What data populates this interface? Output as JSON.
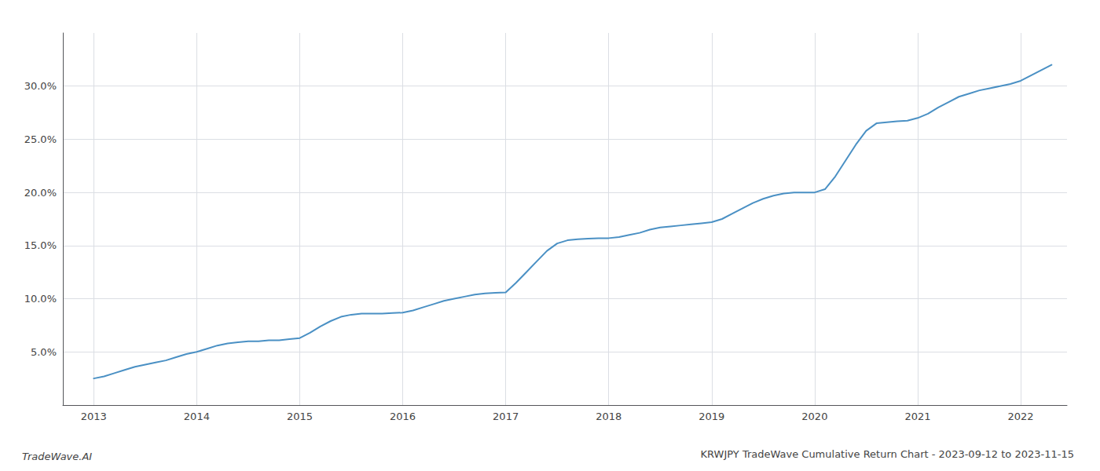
{
  "chart_data": {
    "type": "line",
    "title": "KRWJPY TradeWave Cumulative Return Chart - 2023-09-12 to 2023-11-15",
    "annotations": [
      "TradeWave.AI"
    ],
    "color": "#4a90c4",
    "x": [
      2013.0,
      2013.1,
      2013.2,
      2013.3,
      2013.4,
      2013.5,
      2013.6,
      2013.7,
      2013.8,
      2013.9,
      2014.0,
      2014.1,
      2014.2,
      2014.3,
      2014.4,
      2014.5,
      2014.6,
      2014.7,
      2014.8,
      2014.9,
      2015.0,
      2015.1,
      2015.2,
      2015.3,
      2015.4,
      2015.5,
      2015.6,
      2015.7,
      2015.8,
      2015.9,
      2016.0,
      2016.1,
      2016.2,
      2016.3,
      2016.4,
      2016.5,
      2016.6,
      2016.7,
      2016.8,
      2016.9,
      2017.0,
      2017.1,
      2017.2,
      2017.3,
      2017.4,
      2017.5,
      2017.6,
      2017.7,
      2017.8,
      2017.9,
      2018.0,
      2018.1,
      2018.2,
      2018.3,
      2018.4,
      2018.5,
      2018.6,
      2018.7,
      2018.8,
      2018.9,
      2019.0,
      2019.1,
      2019.2,
      2019.3,
      2019.4,
      2019.5,
      2019.6,
      2019.7,
      2019.8,
      2019.9,
      2020.0,
      2020.1,
      2020.2,
      2020.3,
      2020.4,
      2020.5,
      2020.6,
      2020.7,
      2020.8,
      2020.9,
      2021.0,
      2021.1,
      2021.2,
      2021.3,
      2021.4,
      2021.5,
      2021.6,
      2021.7,
      2021.8,
      2021.9,
      2022.0,
      2022.1,
      2022.2,
      2022.3
    ],
    "values": [
      2.5,
      2.7,
      3.0,
      3.3,
      3.6,
      3.8,
      4.0,
      4.2,
      4.5,
      4.8,
      5.0,
      5.3,
      5.6,
      5.8,
      5.9,
      6.0,
      6.0,
      6.1,
      6.1,
      6.2,
      6.3,
      6.8,
      7.4,
      7.9,
      8.3,
      8.5,
      8.6,
      8.6,
      8.6,
      8.65,
      8.7,
      8.9,
      9.2,
      9.5,
      9.8,
      10.0,
      10.2,
      10.4,
      10.5,
      10.55,
      10.6,
      11.5,
      12.5,
      13.5,
      14.5,
      15.2,
      15.5,
      15.6,
      15.65,
      15.7,
      15.7,
      15.8,
      16.0,
      16.2,
      16.5,
      16.7,
      16.8,
      16.9,
      17.0,
      17.1,
      17.2,
      17.5,
      18.0,
      18.5,
      19.0,
      19.4,
      19.7,
      19.9,
      20.0,
      20.0,
      20.0,
      20.3,
      21.5,
      23.0,
      24.5,
      25.8,
      26.5,
      26.6,
      26.7,
      26.75,
      27.0,
      27.4,
      28.0,
      28.5,
      29.0,
      29.3,
      29.6,
      29.8,
      30.0,
      30.2,
      30.5,
      31.0,
      31.5,
      32.0
    ],
    "xlim": [
      2012.7,
      2022.45
    ],
    "ylim": [
      0,
      35
    ],
    "xticks": [
      2013,
      2014,
      2015,
      2016,
      2017,
      2018,
      2019,
      2020,
      2021,
      2022
    ],
    "yticks": [
      {
        "value": 5.0,
        "label": "5.0%"
      },
      {
        "value": 10.0,
        "label": "10.0%"
      },
      {
        "value": 15.0,
        "label": "15.0%"
      },
      {
        "value": 20.0,
        "label": "20.0%"
      },
      {
        "value": 25.0,
        "label": "25.0%"
      },
      {
        "value": 30.0,
        "label": "30.0%"
      }
    ],
    "grid": true
  }
}
